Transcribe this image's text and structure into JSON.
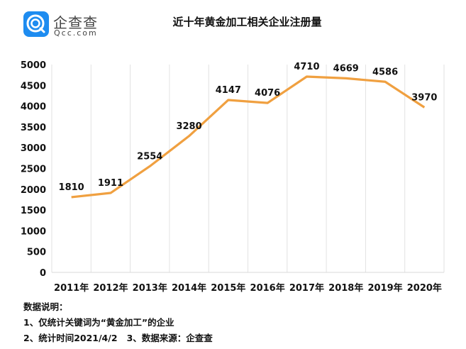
{
  "logo": {
    "name_cn": "企查查",
    "name_en": "Qcc.com",
    "color": "#1e8cf0"
  },
  "title": "近十年黄金加工相关企业注册量",
  "notes": {
    "heading": "数据说明：",
    "line1": "1、仅统计关键词为“黄金加工”的企业",
    "line2": "2、统计时间2021/4/2   3、数据来源：企查查"
  },
  "chart_data": {
    "type": "line",
    "title": "近十年黄金加工相关企业注册量",
    "xlabel": "",
    "ylabel": "",
    "categories": [
      "2011年",
      "2012年",
      "2013年",
      "2014年",
      "2015年",
      "2016年",
      "2017年",
      "2018年",
      "2019年",
      "2020年"
    ],
    "series": [
      {
        "name": "注册量",
        "values": [
          1810,
          1911,
          2554,
          3280,
          4147,
          4076,
          4710,
          4669,
          4586,
          3970
        ],
        "color": "#f0a040"
      }
    ],
    "ylim": [
      0,
      5000
    ],
    "yticks": [
      0,
      500,
      1000,
      1500,
      2000,
      2500,
      3000,
      3500,
      4000,
      4500,
      5000
    ],
    "grid": "vertical",
    "data_labels": true,
    "legend": "none"
  }
}
